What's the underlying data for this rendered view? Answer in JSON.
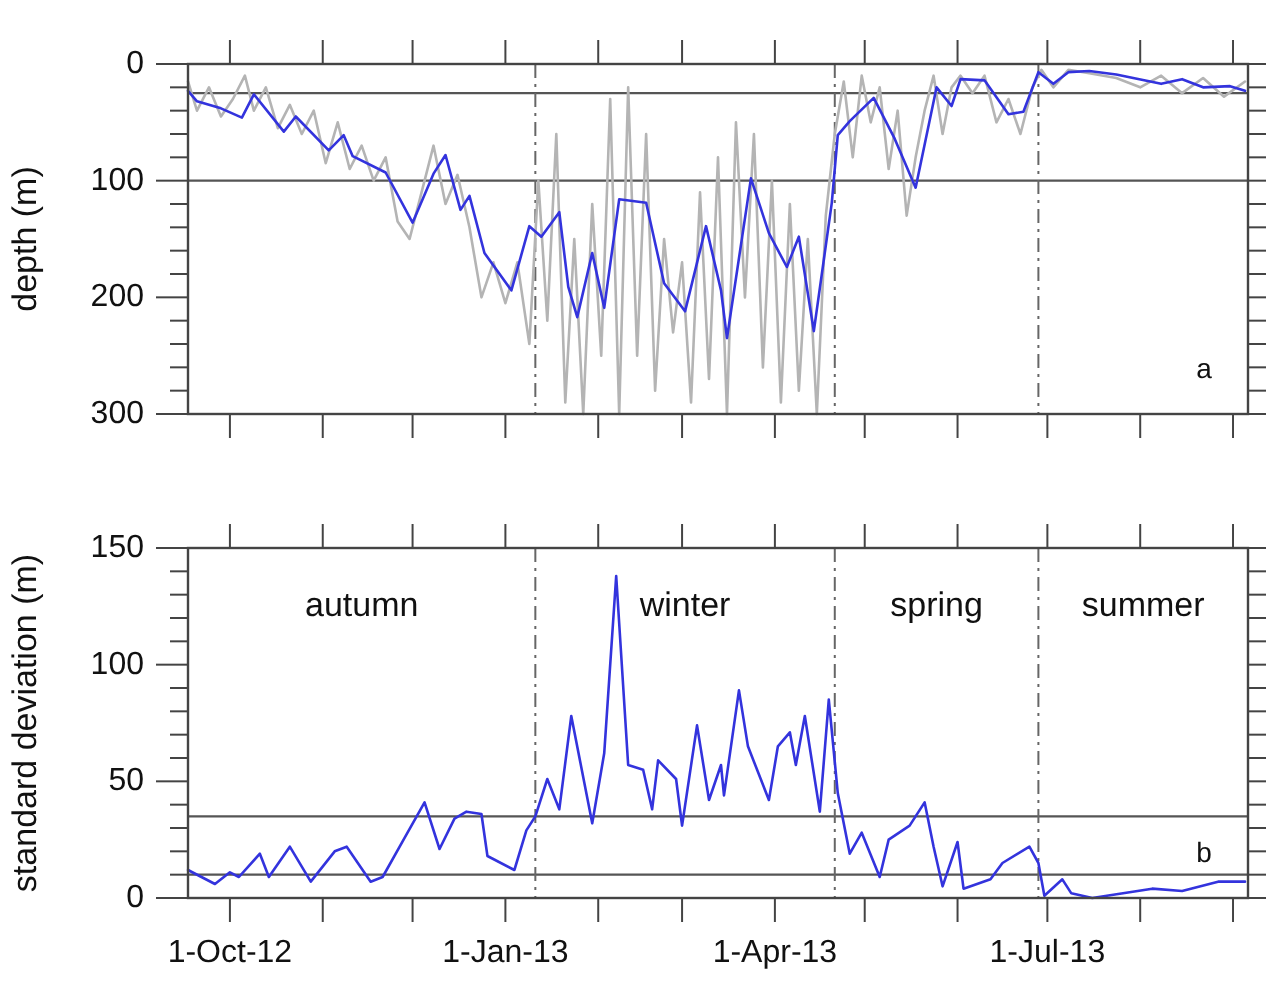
{
  "chart_data": [
    {
      "type": "line",
      "ylabel": "depth (m)",
      "xlim": [
        "2012-09-17",
        "2013-09-06"
      ],
      "ylim": [
        300,
        0
      ],
      "xticks": [
        {
          "value": "2012-10-01",
          "label": null
        },
        {
          "value": "2012-11-01",
          "label": null
        },
        {
          "value": "2012-12-01",
          "label": null
        },
        {
          "value": "2013-01-01",
          "label": null
        },
        {
          "value": "2013-02-01",
          "label": null
        },
        {
          "value": "2013-03-01",
          "label": null
        },
        {
          "value": "2013-04-01",
          "label": null
        },
        {
          "value": "2013-05-01",
          "label": null
        },
        {
          "value": "2013-06-01",
          "label": null
        },
        {
          "value": "2013-07-01",
          "label": null
        },
        {
          "value": "2013-08-01",
          "label": null
        },
        {
          "value": "2013-09-01",
          "label": null
        }
      ],
      "yticks": [
        0,
        {
          "value": 20,
          "label": null
        },
        {
          "value": 40,
          "label": null
        },
        {
          "value": 60,
          "label": null
        },
        {
          "value": 80,
          "label": null
        },
        100,
        {
          "value": 120,
          "label": null
        },
        {
          "value": 140,
          "label": null
        },
        {
          "value": 160,
          "label": null
        },
        {
          "value": 180,
          "label": null
        },
        200,
        {
          "value": 220,
          "label": null
        },
        {
          "value": 240,
          "label": null
        },
        {
          "value": 260,
          "label": null
        },
        {
          "value": 280,
          "label": null
        },
        300
      ],
      "tick_labels": "y",
      "series": [
        {
          "color": "#b4b4b4",
          "x": [
            "2012-09-17",
            "2012-09-20",
            "2012-09-24",
            "2012-09-28",
            "2012-10-02",
            "2012-10-06",
            "2012-10-09",
            "2012-10-13",
            "2012-10-17",
            "2012-10-21",
            "2012-10-25",
            "2012-10-29",
            "2012-11-02",
            "2012-11-06",
            "2012-11-10",
            "2012-11-14",
            "2012-11-18",
            "2012-11-22",
            "2012-11-26",
            "2012-11-30",
            "2012-12-04",
            "2012-12-08",
            "2012-12-12",
            "2012-12-16",
            "2012-12-20",
            "2012-12-24",
            "2012-12-28",
            "2013-01-01",
            "2013-01-05",
            "2013-01-09",
            "2013-01-12",
            "2013-01-15",
            "2013-01-18",
            "2013-01-21",
            "2013-01-24",
            "2013-01-27",
            "2013-01-30",
            "2013-02-02",
            "2013-02-05",
            "2013-02-08",
            "2013-02-11",
            "2013-02-14",
            "2013-02-17",
            "2013-02-20",
            "2013-02-23",
            "2013-02-26",
            "2013-03-01",
            "2013-03-04",
            "2013-03-07",
            "2013-03-10",
            "2013-03-13",
            "2013-03-16",
            "2013-03-19",
            "2013-03-22",
            "2013-03-25",
            "2013-03-28",
            "2013-03-31",
            "2013-04-03",
            "2013-04-06",
            "2013-04-09",
            "2013-04-12",
            "2013-04-15",
            "2013-04-18",
            "2013-04-21",
            "2013-04-24",
            "2013-04-27",
            "2013-04-30",
            "2013-05-03",
            "2013-05-06",
            "2013-05-09",
            "2013-05-12",
            "2013-05-15",
            "2013-05-18",
            "2013-05-21",
            "2013-05-24",
            "2013-05-27",
            "2013-05-30",
            "2013-06-02",
            "2013-06-06",
            "2013-06-10",
            "2013-06-14",
            "2013-06-18",
            "2013-06-22",
            "2013-06-26",
            "2013-06-29",
            "2013-07-03",
            "2013-07-08",
            "2013-07-15",
            "2013-07-24",
            "2013-08-01",
            "2013-08-08",
            "2013-08-15",
            "2013-08-22",
            "2013-08-29",
            "2013-09-05"
          ],
          "values": [
            15,
            40,
            20,
            45,
            30,
            10,
            40,
            20,
            55,
            35,
            60,
            40,
            85,
            50,
            90,
            70,
            100,
            80,
            135,
            150,
            110,
            70,
            120,
            95,
            140,
            200,
            170,
            205,
            170,
            240,
            100,
            220,
            60,
            290,
            150,
            300,
            120,
            250,
            30,
            300,
            20,
            250,
            60,
            280,
            150,
            230,
            170,
            290,
            110,
            270,
            80,
            300,
            50,
            200,
            60,
            260,
            100,
            290,
            120,
            280,
            150,
            300,
            130,
            60,
            15,
            80,
            10,
            50,
            20,
            90,
            40,
            130,
            80,
            40,
            10,
            60,
            20,
            10,
            25,
            10,
            50,
            30,
            60,
            20,
            5,
            20,
            5,
            8,
            12,
            20,
            10,
            25,
            12,
            28,
            15
          ]
        },
        {
          "color": "#3333dd",
          "x": [
            "2012-09-17",
            "2012-09-20",
            "2012-09-28",
            "2012-10-05",
            "2012-10-09",
            "2012-10-19",
            "2012-10-23",
            "2012-11-03",
            "2012-11-08",
            "2012-11-11",
            "2012-11-22",
            "2012-12-01",
            "2012-12-08",
            "2012-12-12",
            "2012-12-17",
            "2012-12-20",
            "2012-12-25",
            "2013-01-03",
            "2013-01-09",
            "2013-01-13",
            "2013-01-19",
            "2013-01-22",
            "2013-01-25",
            "2013-01-30",
            "2013-02-03",
            "2013-02-08",
            "2013-02-17",
            "2013-02-23",
            "2013-03-02",
            "2013-03-09",
            "2013-03-14",
            "2013-03-16",
            "2013-03-24",
            "2013-03-30",
            "2013-04-05",
            "2013-04-09",
            "2013-04-14",
            "2013-04-20",
            "2013-04-22",
            "2013-04-26",
            "2013-05-04",
            "2013-05-11",
            "2013-05-18",
            "2013-05-25",
            "2013-05-30",
            "2013-06-02",
            "2013-06-10",
            "2013-06-18",
            "2013-06-23",
            "2013-06-28",
            "2013-07-03",
            "2013-07-08",
            "2013-07-15",
            "2013-07-24",
            "2013-08-08",
            "2013-08-15",
            "2013-08-22",
            "2013-08-31",
            "2013-09-05"
          ],
          "values": [
            23,
            32,
            38,
            46,
            26,
            58,
            45,
            74,
            61,
            79,
            93,
            136,
            94,
            78,
            125,
            113,
            162,
            194,
            139,
            148,
            127,
            191,
            217,
            162,
            209,
            116,
            119,
            188,
            212,
            139,
            194,
            235,
            98,
            145,
            174,
            148,
            229,
            119,
            61,
            49,
            29,
            64,
            106,
            20,
            36,
            13,
            14,
            43,
            41,
            7,
            17,
            7,
            6,
            9,
            17,
            13,
            20,
            19,
            23
          ]
        }
      ],
      "ref_lines": [
        {
          "axis": "y",
          "value": 25
        },
        {
          "axis": "y",
          "value": 100
        },
        {
          "axis": "x",
          "value": "2013-01-11",
          "line_style": "dashed"
        },
        {
          "axis": "x",
          "value": "2013-04-21",
          "line_style": "dashed"
        },
        {
          "axis": "x",
          "value": "2013-06-28",
          "line_style": "dashed"
        }
      ],
      "annotations": [
        "a"
      ]
    },
    {
      "type": "line",
      "ylabel": "standard deviation (m)",
      "xlim": [
        "2012-09-17",
        "2013-09-06"
      ],
      "ylim": [
        0,
        150
      ],
      "xticks": [
        {
          "value": "2012-10-01",
          "label": "1-Oct-12"
        },
        {
          "value": "2012-11-01",
          "label": null
        },
        {
          "value": "2012-12-01",
          "label": null
        },
        {
          "value": "2013-01-01",
          "label": "1-Jan-13"
        },
        {
          "value": "2013-02-01",
          "label": null
        },
        {
          "value": "2013-03-01",
          "label": null
        },
        {
          "value": "2013-04-01",
          "label": "1-Apr-13"
        },
        {
          "value": "2013-05-01",
          "label": null
        },
        {
          "value": "2013-06-01",
          "label": null
        },
        {
          "value": "2013-07-01",
          "label": "1-Jul-13"
        },
        {
          "value": "2013-08-01",
          "label": null
        },
        {
          "value": "2013-09-01",
          "label": null
        }
      ],
      "yticks": [
        0,
        {
          "value": 10,
          "label": null
        },
        {
          "value": 20,
          "label": null
        },
        {
          "value": 30,
          "label": null
        },
        {
          "value": 40,
          "label": null
        },
        50,
        {
          "value": 60,
          "label": null
        },
        {
          "value": 70,
          "label": null
        },
        {
          "value": 80,
          "label": null
        },
        {
          "value": 90,
          "label": null
        },
        100,
        {
          "value": 110,
          "label": null
        },
        {
          "value": 120,
          "label": null
        },
        {
          "value": 130,
          "label": null
        },
        {
          "value": 140,
          "label": null
        },
        150
      ],
      "series": [
        {
          "color": "#3333dd",
          "x": [
            "2012-09-17",
            "2012-09-26",
            "2012-10-01",
            "2012-10-04",
            "2012-10-11",
            "2012-10-14",
            "2012-10-21",
            "2012-10-28",
            "2012-11-05",
            "2012-11-09",
            "2012-11-17",
            "2012-11-21",
            "2012-11-28",
            "2012-12-05",
            "2012-12-10",
            "2012-12-15",
            "2012-12-19",
            "2012-12-24",
            "2012-12-26",
            "2013-01-04",
            "2013-01-08",
            "2013-01-11",
            "2013-01-15",
            "2013-01-19",
            "2013-01-23",
            "2013-01-30",
            "2013-02-03",
            "2013-02-07",
            "2013-02-11",
            "2013-02-16",
            "2013-02-19",
            "2013-02-21",
            "2013-02-27",
            "2013-03-01",
            "2013-03-06",
            "2013-03-10",
            "2013-03-14",
            "2013-03-15",
            "2013-03-20",
            "2013-03-23",
            "2013-03-30",
            "2013-04-02",
            "2013-04-06",
            "2013-04-08",
            "2013-04-11",
            "2013-04-16",
            "2013-04-19",
            "2013-04-22",
            "2013-04-26",
            "2013-04-30",
            "2013-05-06",
            "2013-05-09",
            "2013-05-16",
            "2013-05-21",
            "2013-05-24",
            "2013-05-27",
            "2013-06-01",
            "2013-06-03",
            "2013-06-12",
            "2013-06-16",
            "2013-06-25",
            "2013-06-28",
            "2013-06-30",
            "2013-07-06",
            "2013-07-09",
            "2013-07-16",
            "2013-08-05",
            "2013-08-15",
            "2013-08-27",
            "2013-09-05"
          ],
          "values": [
            12,
            6,
            11,
            9,
            19,
            9,
            22,
            7,
            20,
            22,
            7,
            9,
            25,
            41,
            21,
            34,
            37,
            36,
            18,
            12,
            29,
            35,
            51,
            38,
            78,
            32,
            62,
            138,
            57,
            55,
            38,
            59,
            51,
            31,
            74,
            42,
            57,
            44,
            89,
            65,
            42,
            65,
            71,
            57,
            78,
            37,
            85,
            45,
            19,
            28,
            9,
            25,
            31,
            41,
            22,
            5,
            24,
            4,
            8,
            15,
            22,
            15,
            1,
            8,
            2,
            0,
            4,
            3,
            7,
            7
          ]
        }
      ],
      "ref_lines": [
        {
          "axis": "y",
          "value": 35
        },
        {
          "axis": "y",
          "value": 10
        },
        {
          "axis": "x",
          "value": "2013-01-11",
          "line_style": "dashed"
        },
        {
          "axis": "x",
          "value": "2013-04-21",
          "line_style": "dashed"
        },
        {
          "axis": "x",
          "value": "2013-06-28",
          "line_style": "dashed"
        }
      ],
      "annotations": [
        "autumn",
        "winter",
        "spring",
        "summer",
        "b"
      ]
    }
  ]
}
